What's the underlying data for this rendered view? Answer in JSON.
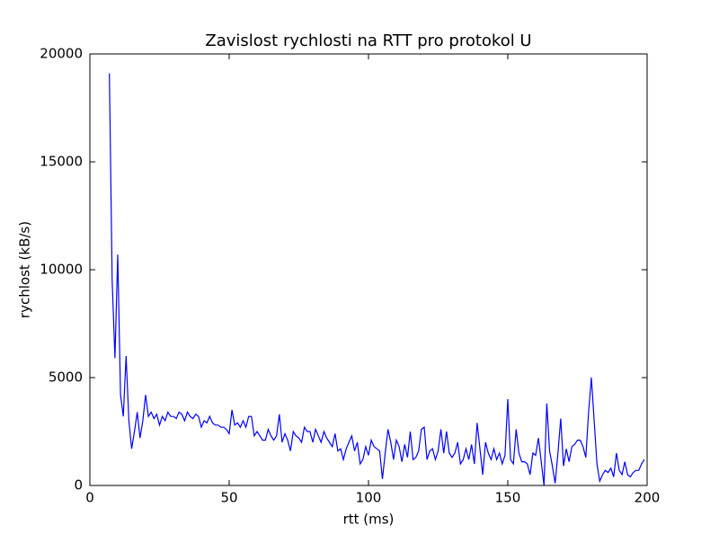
{
  "chart_data": {
    "type": "line",
    "title": "Zavislost rychlosti na RTT pro protokol U",
    "xlabel": "rtt (ms)",
    "ylabel": "rychlost (kB/s)",
    "color": "#0000ff",
    "x": [
      7,
      8,
      9,
      10,
      11,
      12,
      13,
      14,
      15,
      16,
      17,
      18,
      19,
      20,
      21,
      22,
      23,
      24,
      25,
      26,
      27,
      28,
      29,
      30,
      31,
      32,
      33,
      34,
      35,
      36,
      37,
      38,
      39,
      40,
      41,
      42,
      43,
      44,
      45,
      46,
      47,
      48,
      49,
      50,
      51,
      52,
      53,
      54,
      55,
      56,
      57,
      58,
      59,
      60,
      61,
      62,
      63,
      64,
      65,
      66,
      67,
      68,
      69,
      70,
      71,
      72,
      73,
      74,
      75,
      76,
      77,
      78,
      79,
      80,
      81,
      82,
      83,
      84,
      85,
      86,
      87,
      88,
      89,
      90,
      91,
      92,
      93,
      94,
      95,
      96,
      97,
      98,
      99,
      100,
      101,
      102,
      103,
      104,
      105,
      106,
      107,
      108,
      109,
      110,
      111,
      112,
      113,
      114,
      115,
      116,
      117,
      118,
      119,
      120,
      121,
      122,
      123,
      124,
      125,
      126,
      127,
      128,
      129,
      130,
      131,
      132,
      133,
      134,
      135,
      136,
      137,
      138,
      139,
      140,
      141,
      142,
      143,
      144,
      145,
      146,
      147,
      148,
      149,
      150,
      151,
      152,
      153,
      154,
      155,
      156,
      157,
      158,
      159,
      160,
      161,
      162,
      163,
      164,
      165,
      166,
      167,
      168,
      169,
      170,
      171,
      172,
      173,
      174,
      175,
      176,
      177,
      178,
      179,
      180,
      181,
      182,
      183,
      184,
      185,
      186,
      187,
      188,
      189,
      190,
      191,
      192,
      193,
      194,
      195,
      196,
      197,
      198,
      199
    ],
    "values": [
      19100,
      9500,
      5900,
      10700,
      4200,
      3200,
      6000,
      3000,
      1700,
      2500,
      3400,
      2200,
      3000,
      4200,
      3200,
      3400,
      3100,
      3300,
      2800,
      3200,
      3000,
      3400,
      3200,
      3200,
      3100,
      3400,
      3300,
      3000,
      3400,
      3200,
      3100,
      3300,
      3200,
      2700,
      3000,
      2900,
      3200,
      2900,
      2800,
      2800,
      2700,
      2700,
      2600,
      2400,
      3500,
      2800,
      2900,
      2700,
      3000,
      2700,
      3200,
      3200,
      2300,
      2500,
      2300,
      2100,
      2100,
      2600,
      2300,
      2100,
      2300,
      3300,
      2000,
      2400,
      2100,
      1600,
      2500,
      2300,
      2200,
      2000,
      2700,
      2500,
      2500,
      2000,
      2600,
      2300,
      2000,
      2500,
      2200,
      2000,
      1800,
      2400,
      1600,
      1700,
      1200,
      1700,
      2000,
      2300,
      1600,
      2000,
      1000,
      1200,
      1800,
      1400,
      2100,
      1800,
      1700,
      1600,
      300,
      1500,
      2600,
      2000,
      1200,
      2100,
      1800,
      1100,
      1900,
      1300,
      2500,
      1200,
      1300,
      1600,
      2600,
      2700,
      1200,
      1600,
      1700,
      1200,
      1600,
      2600,
      1500,
      2500,
      1500,
      1300,
      1500,
      2000,
      1000,
      1200,
      1700,
      1200,
      1900,
      1000,
      2900,
      1700,
      500,
      2000,
      1500,
      1200,
      1700,
      1200,
      1500,
      1000,
      1400,
      4000,
      1200,
      1000,
      2600,
      1500,
      1100,
      1100,
      1000,
      500,
      1500,
      1400,
      2200,
      1100,
      0,
      3800,
      1600,
      900,
      100,
      1500,
      3100,
      900,
      1700,
      1100,
      1800,
      1900,
      2100,
      2100,
      1800,
      1300,
      3400,
      5000,
      3000,
      1000,
      200,
      500,
      700,
      600,
      800,
      400,
      1500,
      700,
      500,
      1100,
      500,
      400,
      600,
      700,
      700,
      1000,
      1200
    ],
    "xlim": [
      0,
      200
    ],
    "xticks": [
      0,
      50,
      100,
      150,
      200
    ],
    "ylim": [
      0,
      20000
    ],
    "yticks": [
      0,
      5000,
      10000,
      15000,
      20000
    ]
  }
}
